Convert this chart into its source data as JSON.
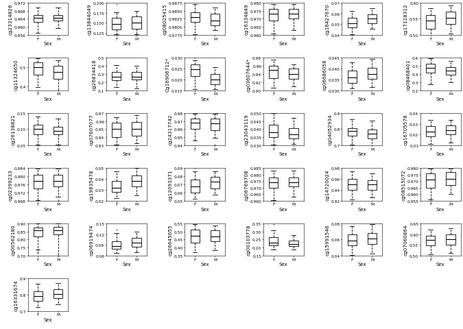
{
  "plots": [
    {
      "name": "cg23314826",
      "F": {
        "whislo": 0.957,
        "q1": 0.9625,
        "med": 0.9645,
        "q3": 0.966,
        "whishi": 0.9695,
        "fliers": []
      },
      "M": {
        "whislo": 0.9595,
        "q1": 0.963,
        "med": 0.9645,
        "q3": 0.966,
        "whishi": 0.9695,
        "fliers": []
      },
      "ylim": [
        0.956,
        0.972
      ],
      "yticks": [
        0.956,
        0.96,
        0.964,
        0.968,
        0.972
      ]
    },
    {
      "name": "cg13844049",
      "F": {
        "whislo": 0.122,
        "q1": 0.133,
        "med": 0.148,
        "q3": 0.163,
        "whishi": 0.176,
        "fliers": [
          0.197
        ]
      },
      "M": {
        "whislo": 0.122,
        "q1": 0.135,
        "med": 0.15,
        "q3": 0.166,
        "whishi": 0.18,
        "fliers": []
      },
      "ylim": [
        0.12,
        0.2
      ],
      "yticks": [
        0.125,
        0.15,
        0.175,
        0.2
      ]
    },
    {
      "name": "cg08025415",
      "F": {
        "whislo": 0.9777,
        "q1": 0.9815,
        "med": 0.983,
        "q3": 0.9845,
        "whishi": 0.987,
        "fliers": []
      },
      "M": {
        "whislo": 0.979,
        "q1": 0.9805,
        "med": 0.982,
        "q3": 0.984,
        "whishi": 0.986,
        "fliers": []
      },
      "ylim": [
        0.9775,
        0.9875
      ],
      "yticks": [
        0.9775,
        0.98,
        0.9825,
        0.985,
        0.9875
      ]
    },
    {
      "name": "cg16334849",
      "F": {
        "whislo": 0.961,
        "q1": 0.969,
        "med": 0.973,
        "q3": 0.976,
        "whishi": 0.979,
        "fliers": [
          0.96
        ]
      },
      "M": {
        "whislo": 0.963,
        "q1": 0.97,
        "med": 0.973,
        "q3": 0.976,
        "whishi": 0.979,
        "fliers": []
      },
      "ylim": [
        0.96,
        0.98
      ],
      "yticks": [
        0.96,
        0.965,
        0.97,
        0.975,
        0.98
      ]
    },
    {
      "name": "cg16427670",
      "F": {
        "whislo": 0.041,
        "q1": 0.047,
        "med": 0.051,
        "q3": 0.056,
        "whishi": 0.062,
        "fliers": []
      },
      "M": {
        "whislo": 0.046,
        "q1": 0.051,
        "med": 0.055,
        "q3": 0.059,
        "whishi": 0.065,
        "fliers": []
      },
      "ylim": [
        0.04,
        0.07
      ],
      "yticks": [
        0.04,
        0.05,
        0.06,
        0.07
      ]
    },
    {
      "name": "cg17128312",
      "F": {
        "whislo": 0.495,
        "q1": 0.52,
        "med": 0.545,
        "q3": 0.562,
        "whishi": 0.583,
        "fliers": []
      },
      "M": {
        "whislo": 0.505,
        "q1": 0.535,
        "med": 0.553,
        "q3": 0.572,
        "whishi": 0.592,
        "fliers": []
      },
      "ylim": [
        0.5,
        0.6
      ],
      "yticks": [
        0.5,
        0.55,
        0.6
      ]
    },
    {
      "name": "cg11324650",
      "F": {
        "whislo": 0.395,
        "q1": 0.46,
        "med": 0.5,
        "q3": 0.525,
        "whishi": 0.548,
        "fliers": []
      },
      "M": {
        "whislo": 0.375,
        "q1": 0.44,
        "med": 0.475,
        "q3": 0.508,
        "whishi": 0.538,
        "fliers": [
          0.348
        ]
      },
      "ylim": [
        0.38,
        0.55
      ],
      "yticks": [
        0.4,
        0.5
      ]
    },
    {
      "name": "cg26834418",
      "F": {
        "whislo": 0.135,
        "q1": 0.22,
        "med": 0.268,
        "q3": 0.328,
        "whishi": 0.408,
        "fliers": []
      },
      "M": {
        "whislo": 0.125,
        "q1": 0.228,
        "med": 0.268,
        "q3": 0.328,
        "whishi": 0.398,
        "fliers": []
      },
      "ylim": [
        0.1,
        0.5
      ],
      "yticks": [
        0.1,
        0.2,
        0.3,
        0.4,
        0.5
      ]
    },
    {
      "name": "Cg16906712*",
      "F": {
        "whislo": 0.0155,
        "q1": 0.0215,
        "med": 0.0248,
        "q3": 0.0268,
        "whishi": 0.0288,
        "fliers": [
          0.03
        ]
      },
      "M": {
        "whislo": 0.0155,
        "q1": 0.0178,
        "med": 0.02,
        "q3": 0.0225,
        "whishi": 0.0258,
        "fliers": []
      },
      "ylim": [
        0.015,
        0.03
      ],
      "yticks": [
        0.015,
        0.02,
        0.025,
        0.03
      ]
    },
    {
      "name": "cg03607644*",
      "F": {
        "whislo": 0.906,
        "q1": 0.93,
        "med": 0.95,
        "q3": 0.96,
        "whishi": 0.975,
        "fliers": []
      },
      "M": {
        "whislo": 0.91,
        "q1": 0.928,
        "med": 0.94,
        "q3": 0.954,
        "whishi": 0.964,
        "fliers": []
      },
      "ylim": [
        0.9,
        0.98
      ],
      "yticks": [
        0.9,
        0.92,
        0.94,
        0.96,
        0.98
      ]
    },
    {
      "name": "cg06686058",
      "F": {
        "whislo": 0.0308,
        "q1": 0.0335,
        "med": 0.036,
        "q3": 0.039,
        "whishi": 0.043,
        "fliers": [
          0.0455
        ]
      },
      "M": {
        "whislo": 0.0315,
        "q1": 0.0352,
        "med": 0.0375,
        "q3": 0.0402,
        "whishi": 0.0445,
        "fliers": []
      },
      "ylim": [
        0.03,
        0.045
      ],
      "yticks": [
        0.03,
        0.035,
        0.04,
        0.045
      ]
    },
    {
      "name": "cg08468401",
      "F": {
        "whislo": 0.275,
        "q1": 0.418,
        "med": 0.472,
        "q3": 0.528,
        "whishi": 0.598,
        "fliers": []
      },
      "M": {
        "whislo": 0.302,
        "q1": 0.393,
        "med": 0.438,
        "q3": 0.488,
        "whishi": 0.558,
        "fliers": []
      },
      "ylim": [
        0.2,
        0.6
      ],
      "yticks": [
        0.2,
        0.3,
        0.4,
        0.5,
        0.6
      ]
    },
    {
      "name": "cg26138821",
      "F": {
        "whislo": 0.052,
        "q1": 0.085,
        "med": 0.1,
        "q3": 0.113,
        "whishi": 0.138,
        "fliers": []
      },
      "M": {
        "whislo": 0.052,
        "q1": 0.083,
        "med": 0.095,
        "q3": 0.108,
        "whishi": 0.132,
        "fliers": []
      },
      "ylim": [
        0.05,
        0.15
      ],
      "yticks": [
        0.05,
        0.1,
        0.15
      ]
    },
    {
      "name": "cg07607077",
      "F": {
        "whislo": 0.931,
        "q1": 0.94,
        "med": 0.95,
        "q3": 0.958,
        "whishi": 0.965,
        "fliers": []
      },
      "M": {
        "whislo": 0.933,
        "q1": 0.942,
        "med": 0.95,
        "q3": 0.959,
        "whishi": 0.967,
        "fliers": []
      },
      "ylim": [
        0.93,
        0.97
      ],
      "yticks": [
        0.93,
        0.94,
        0.95,
        0.96,
        0.97
      ]
    },
    {
      "name": "cg24317742",
      "F": {
        "whislo": 0.946,
        "q1": 0.96,
        "med": 0.968,
        "q3": 0.973,
        "whishi": 0.979,
        "fliers": []
      },
      "M": {
        "whislo": 0.949,
        "q1": 0.959,
        "med": 0.967,
        "q3": 0.973,
        "whishi": 0.979,
        "fliers": [
          0.941
        ]
      },
      "ylim": [
        0.94,
        0.98
      ],
      "yticks": [
        0.94,
        0.95,
        0.96,
        0.97,
        0.98
      ]
    },
    {
      "name": "cg23043119",
      "F": {
        "whislo": 0.0305,
        "q1": 0.0352,
        "med": 0.0382,
        "q3": 0.0428,
        "whishi": 0.0498,
        "fliers": []
      },
      "M": {
        "whislo": 0.0308,
        "q1": 0.0342,
        "med": 0.0368,
        "q3": 0.0408,
        "whishi": 0.0468,
        "fliers": []
      },
      "ylim": [
        0.03,
        0.05
      ],
      "yticks": [
        0.03,
        0.035,
        0.04,
        0.045,
        0.05
      ]
    },
    {
      "name": "cg04052934",
      "F": {
        "whislo": 0.705,
        "q1": 0.758,
        "med": 0.79,
        "q3": 0.808,
        "whishi": 0.862,
        "fliers": []
      },
      "M": {
        "whislo": 0.685,
        "q1": 0.743,
        "med": 0.773,
        "q3": 0.798,
        "whishi": 0.852,
        "fliers": []
      },
      "ylim": [
        0.7,
        0.9
      ],
      "yticks": [
        0.7,
        0.8,
        0.9
      ]
    },
    {
      "name": "cg16705578",
      "F": {
        "whislo": 0.0112,
        "q1": 0.0182,
        "med": 0.0228,
        "q3": 0.0278,
        "whishi": 0.0332,
        "fliers": [
          0.0398
        ]
      },
      "M": {
        "whislo": 0.0125,
        "q1": 0.02,
        "med": 0.0242,
        "q3": 0.0282,
        "whishi": 0.0332,
        "fliers": []
      },
      "ylim": [
        0.01,
        0.04
      ],
      "yticks": [
        0.01,
        0.02,
        0.03,
        0.04
      ]
    },
    {
      "name": "cg02399233",
      "F": {
        "whislo": 0.9682,
        "q1": 0.9738,
        "med": 0.9778,
        "q3": 0.9808,
        "whishi": 0.9838,
        "fliers": []
      },
      "M": {
        "whislo": 0.97,
        "q1": 0.9748,
        "med": 0.9778,
        "q3": 0.9808,
        "whishi": 0.9838,
        "fliers": [
          0.9682
        ]
      },
      "ylim": [
        0.968,
        0.984
      ],
      "yticks": [
        0.968,
        0.972,
        0.976,
        0.98,
        0.984
      ]
    },
    {
      "name": "cg19835478",
      "F": {
        "whislo": 0.022,
        "q1": 0.028,
        "med": 0.032,
        "q3": 0.038,
        "whishi": 0.047,
        "fliers": [
          0.052,
          0.055
        ]
      },
      "M": {
        "whislo": 0.025,
        "q1": 0.033,
        "med": 0.038,
        "q3": 0.043,
        "whishi": 0.05,
        "fliers": []
      },
      "ylim": [
        0.02,
        0.05
      ],
      "yticks": [
        0.02,
        0.03,
        0.04,
        0.05
      ]
    },
    {
      "name": "cg12093371",
      "F": {
        "whislo": 0.052,
        "q1": 0.06,
        "med": 0.067,
        "q3": 0.076,
        "whishi": 0.086,
        "fliers": [
          0.09
        ]
      },
      "M": {
        "whislo": 0.057,
        "q1": 0.065,
        "med": 0.073,
        "q3": 0.079,
        "whishi": 0.086,
        "fliers": []
      },
      "ylim": [
        0.05,
        0.09
      ],
      "yticks": [
        0.05,
        0.06,
        0.07,
        0.08,
        0.09
      ]
    },
    {
      "name": "cg06769708",
      "F": {
        "whislo": 0.9605,
        "q1": 0.97,
        "med": 0.9742,
        "q3": 0.9778,
        "whishi": 0.9828,
        "fliers": [
          0.9605
        ]
      },
      "M": {
        "whislo": 0.9632,
        "q1": 0.9708,
        "med": 0.9742,
        "q3": 0.9778,
        "whishi": 0.9828,
        "fliers": []
      },
      "ylim": [
        0.96,
        0.985
      ],
      "yticks": [
        0.96,
        0.965,
        0.97,
        0.975,
        0.98,
        0.985
      ]
    },
    {
      "name": "cg14720024",
      "F": {
        "whislo": 0.922,
        "q1": 0.94,
        "med": 0.95,
        "q3": 0.96,
        "whishi": 0.974,
        "fliers": []
      },
      "M": {
        "whislo": 0.926,
        "q1": 0.94,
        "med": 0.95,
        "q3": 0.958,
        "whishi": 0.97,
        "fliers": []
      },
      "ylim": [
        0.92,
        0.98
      ],
      "yticks": [
        0.92,
        0.94,
        0.96,
        0.98
      ]
    },
    {
      "name": "cg08515072",
      "F": {
        "whislo": 0.9558,
        "q1": 0.965,
        "med": 0.971,
        "q3": 0.9758,
        "whishi": 0.9798,
        "fliers": [
          0.9558
        ]
      },
      "M": {
        "whislo": 0.9602,
        "q1": 0.967,
        "med": 0.9718,
        "q3": 0.9768,
        "whishi": 0.9798,
        "fliers": []
      },
      "ylim": [
        0.955,
        0.98
      ],
      "yticks": [
        0.955,
        0.96,
        0.965,
        0.97,
        0.975,
        0.98
      ]
    },
    {
      "name": "cg00562180",
      "F": {
        "whislo": 0.738,
        "q1": 0.82,
        "med": 0.858,
        "q3": 0.873,
        "whishi": 0.898,
        "fliers": [
          0.732,
          0.722,
          0.718
        ]
      },
      "M": {
        "whislo": 0.702,
        "q1": 0.83,
        "med": 0.858,
        "q3": 0.878,
        "whishi": 0.898,
        "fliers": [
          0.702,
          0.697,
          0.692
        ]
      },
      "ylim": [
        0.7,
        0.9
      ],
      "yticks": [
        0.7,
        0.75,
        0.8,
        0.85,
        0.9
      ]
    },
    {
      "name": "cg06919474",
      "F": {
        "whislo": 0.067,
        "q1": 0.08,
        "med": 0.087,
        "q3": 0.1,
        "whishi": 0.122,
        "fliers": [
          0.132
        ]
      },
      "M": {
        "whislo": 0.07,
        "q1": 0.084,
        "med": 0.097,
        "q3": 0.11,
        "whishi": 0.127,
        "fliers": []
      },
      "ylim": [
        0.06,
        0.15
      ],
      "yticks": [
        0.06,
        0.09,
        0.12,
        0.15
      ]
    },
    {
      "name": "cg26645655",
      "F": {
        "whislo": 0.372,
        "q1": 0.432,
        "med": 0.472,
        "q3": 0.51,
        "whishi": 0.543,
        "fliers": []
      },
      "M": {
        "whislo": 0.382,
        "q1": 0.437,
        "med": 0.467,
        "q3": 0.505,
        "whishi": 0.538,
        "fliers": []
      },
      "ylim": [
        0.35,
        0.55
      ],
      "yticks": [
        0.35,
        0.4,
        0.45,
        0.5,
        0.55
      ]
    },
    {
      "name": "cg00103778",
      "F": {
        "whislo": 0.187,
        "q1": 0.215,
        "med": 0.232,
        "q3": 0.265,
        "whishi": 0.308,
        "fliers": [
          0.343
        ]
      },
      "M": {
        "whislo": 0.187,
        "q1": 0.21,
        "med": 0.222,
        "q3": 0.242,
        "whishi": 0.278,
        "fliers": []
      },
      "ylim": [
        0.15,
        0.35
      ],
      "yticks": [
        0.15,
        0.2,
        0.25,
        0.3,
        0.35
      ]
    },
    {
      "name": "cg15991546",
      "F": {
        "whislo": 0.041,
        "q1": 0.053,
        "med": 0.059,
        "q3": 0.066,
        "whishi": 0.076,
        "fliers": []
      },
      "M": {
        "whislo": 0.043,
        "q1": 0.054,
        "med": 0.061,
        "q3": 0.068,
        "whishi": 0.079,
        "fliers": []
      },
      "ylim": [
        0.04,
        0.08
      ],
      "yticks": [
        0.04,
        0.06,
        0.08
      ]
    },
    {
      "name": "cg07060864",
      "F": {
        "whislo": 0.508,
        "q1": 0.547,
        "med": 0.572,
        "q3": 0.592,
        "whishi": 0.622,
        "fliers": []
      },
      "M": {
        "whislo": 0.512,
        "q1": 0.552,
        "med": 0.577,
        "q3": 0.597,
        "whishi": 0.627,
        "fliers": []
      },
      "ylim": [
        0.5,
        0.65
      ],
      "yticks": [
        0.5,
        0.55,
        0.6,
        0.65
      ]
    },
    {
      "name": "cg16331674",
      "F": {
        "whislo": 0.722,
        "q1": 0.762,
        "med": 0.792,
        "q3": 0.822,
        "whishi": 0.868,
        "fliers": []
      },
      "M": {
        "whislo": 0.742,
        "q1": 0.777,
        "med": 0.802,
        "q3": 0.832,
        "whishi": 0.872,
        "fliers": []
      },
      "ylim": [
        0.7,
        0.9
      ],
      "yticks": [
        0.7,
        0.8,
        0.9
      ]
    }
  ],
  "ncols": 6,
  "nrows": 6,
  "figsize": [
    6.75,
    4.81
  ],
  "dpi": 100,
  "xlabel": "Sex",
  "xtick_labels": [
    "F",
    "M"
  ],
  "box_facecolor": "white",
  "median_color": "black",
  "whisker_color": "black",
  "flier_marker": ".",
  "label_fontsize": 5.0,
  "axis_fontsize": 5.0,
  "tick_fontsize": 4.2,
  "ylabel_fontsize": 5.2
}
